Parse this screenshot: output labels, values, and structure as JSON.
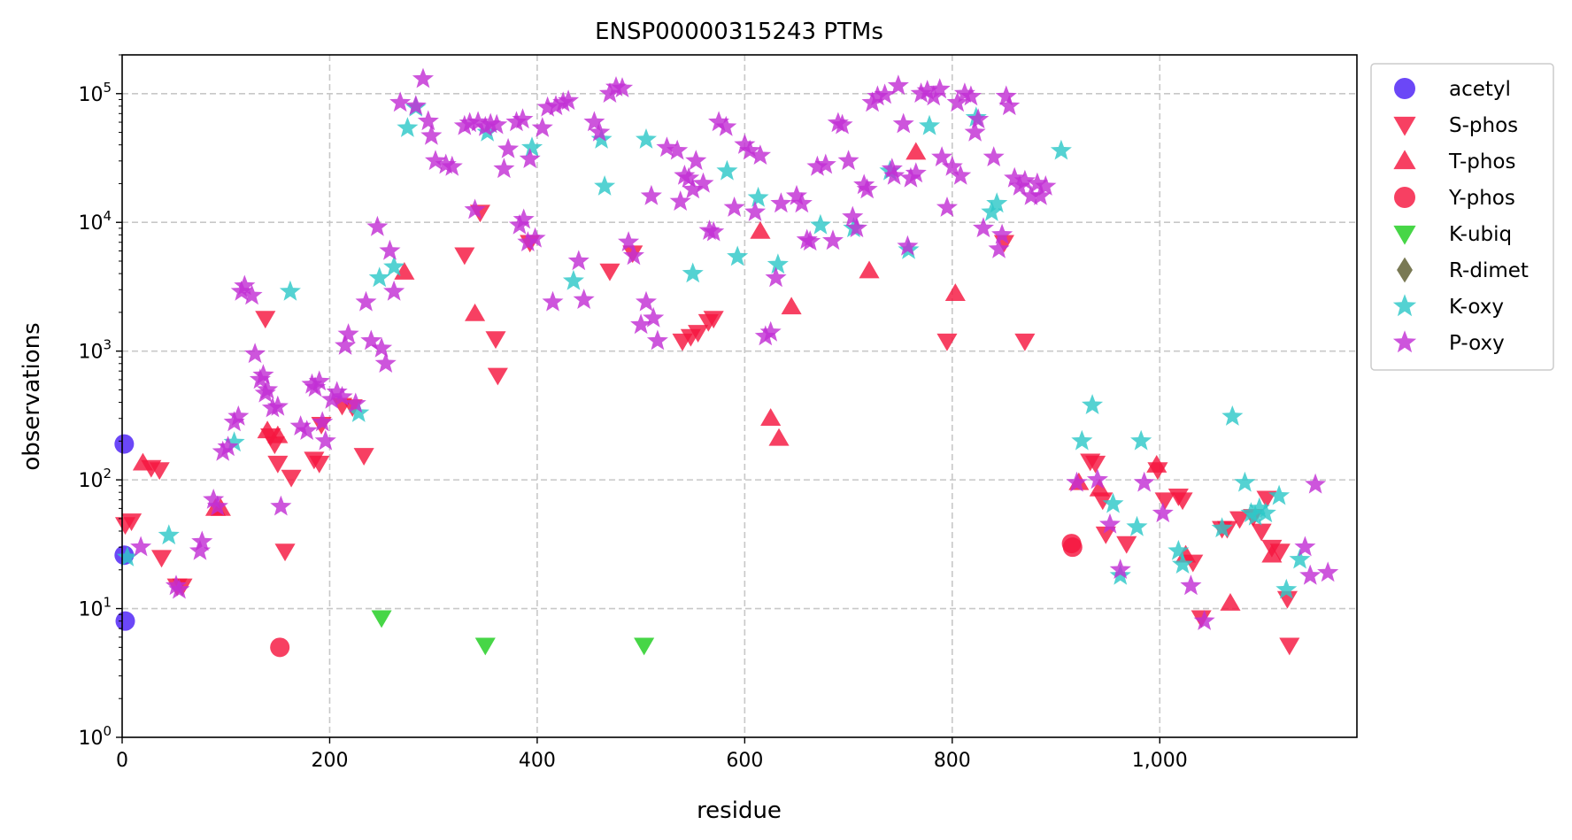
{
  "chart_data": {
    "type": "scatter",
    "title": "ENSP00000315243 PTMs",
    "xlabel": "residue",
    "ylabel": "observations",
    "xlim": [
      0,
      1190
    ],
    "ylim": [
      1,
      200000
    ],
    "y_scale": "log",
    "x_ticks": [
      0,
      200,
      400,
      600,
      800,
      1000
    ],
    "x_tick_labels": [
      "0",
      "200",
      "400",
      "600",
      "800",
      "1,000"
    ],
    "y_ticks": [
      1,
      10,
      100,
      1000,
      10000,
      100000
    ],
    "y_tick_labels": [
      {
        "base": "10",
        "exp": "0"
      },
      {
        "base": "10",
        "exp": "1"
      },
      {
        "base": "10",
        "exp": "2"
      },
      {
        "base": "10",
        "exp": "3"
      },
      {
        "base": "10",
        "exp": "4"
      },
      {
        "base": "10",
        "exp": "5"
      }
    ],
    "grid": true,
    "legend_position": "outside-right-top",
    "series": [
      {
        "name": "acetyl",
        "marker": "circle",
        "color": "#4b1ff5",
        "points": [
          [
            2,
            190
          ],
          [
            2,
            26
          ],
          [
            3,
            8
          ]
        ]
      },
      {
        "name": "S-phos",
        "marker": "triangle-down",
        "color": "#f5163f",
        "points": [
          [
            3,
            45
          ],
          [
            9,
            48
          ],
          [
            28,
            125
          ],
          [
            36,
            120
          ],
          [
            38,
            25
          ],
          [
            53,
            15
          ],
          [
            58,
            15
          ],
          [
            138,
            1800
          ],
          [
            143,
            220
          ],
          [
            147,
            190
          ],
          [
            150,
            135
          ],
          [
            157,
            28
          ],
          [
            163,
            105
          ],
          [
            185,
            145
          ],
          [
            190,
            135
          ],
          [
            192,
            270
          ],
          [
            212,
            380
          ],
          [
            222,
            370
          ],
          [
            233,
            155
          ],
          [
            330,
            5600
          ],
          [
            345,
            12000
          ],
          [
            360,
            1250
          ],
          [
            362,
            650
          ],
          [
            393,
            7000
          ],
          [
            470,
            4200
          ],
          [
            492,
            5800
          ],
          [
            540,
            1200
          ],
          [
            548,
            1300
          ],
          [
            555,
            1400
          ],
          [
            565,
            1700
          ],
          [
            570,
            1800
          ],
          [
            795,
            1200
          ],
          [
            850,
            7000
          ],
          [
            870,
            1200
          ],
          [
            933,
            140
          ],
          [
            938,
            135
          ],
          [
            945,
            70
          ],
          [
            948,
            38
          ],
          [
            968,
            32
          ],
          [
            998,
            120
          ],
          [
            1005,
            70
          ],
          [
            1018,
            75
          ],
          [
            1022,
            70
          ],
          [
            1032,
            23
          ],
          [
            1040,
            8.5
          ],
          [
            1060,
            42
          ],
          [
            1065,
            42
          ],
          [
            1077,
            50
          ],
          [
            1090,
            52
          ],
          [
            1098,
            40
          ],
          [
            1103,
            72
          ],
          [
            1108,
            30
          ],
          [
            1116,
            28
          ],
          [
            1123,
            12
          ],
          [
            1125,
            5.2
          ]
        ]
      },
      {
        "name": "T-phos",
        "marker": "triangle-up",
        "color": "#f5163f",
        "points": [
          [
            20,
            135
          ],
          [
            90,
            60
          ],
          [
            95,
            60
          ],
          [
            140,
            240
          ],
          [
            150,
            220
          ],
          [
            272,
            4100
          ],
          [
            340,
            1950
          ],
          [
            615,
            8500
          ],
          [
            625,
            300
          ],
          [
            633,
            210
          ],
          [
            645,
            2200
          ],
          [
            720,
            4200
          ],
          [
            765,
            35000
          ],
          [
            803,
            2800
          ],
          [
            922,
            95
          ],
          [
            942,
            85
          ],
          [
            997,
            130
          ],
          [
            1025,
            26
          ],
          [
            1068,
            11
          ],
          [
            1108,
            26
          ]
        ]
      },
      {
        "name": "Y-phos",
        "marker": "circle",
        "color": "#f5163f",
        "points": [
          [
            152,
            5
          ],
          [
            915,
            32
          ],
          [
            916,
            30
          ]
        ]
      },
      {
        "name": "K-ubiq",
        "marker": "triangle-down",
        "color": "#1ecd1e",
        "points": [
          [
            250,
            8.5
          ],
          [
            350,
            5.2
          ],
          [
            503,
            5.2
          ]
        ]
      },
      {
        "name": "R-dimet",
        "marker": "diamond",
        "color": "#5c5c2e",
        "points": []
      },
      {
        "name": "K-oxy",
        "marker": "star",
        "color": "#2ec8c8",
        "points": [
          [
            5,
            25
          ],
          [
            45,
            37
          ],
          [
            108,
            195
          ],
          [
            162,
            2900
          ],
          [
            228,
            330
          ],
          [
            248,
            3700
          ],
          [
            262,
            4500
          ],
          [
            275,
            54000
          ],
          [
            283,
            78000
          ],
          [
            352,
            50000
          ],
          [
            395,
            38000
          ],
          [
            435,
            3500
          ],
          [
            462,
            44000
          ],
          [
            465,
            19000
          ],
          [
            505,
            44000
          ],
          [
            550,
            4000
          ],
          [
            583,
            25000
          ],
          [
            593,
            5400
          ],
          [
            613,
            15500
          ],
          [
            632,
            4700
          ],
          [
            673,
            9500
          ],
          [
            705,
            9000
          ],
          [
            740,
            25000
          ],
          [
            758,
            6100
          ],
          [
            778,
            56000
          ],
          [
            823,
            65000
          ],
          [
            838,
            12000
          ],
          [
            843,
            14000
          ],
          [
            905,
            36000
          ],
          [
            925,
            200
          ],
          [
            935,
            380
          ],
          [
            955,
            65
          ],
          [
            962,
            18
          ],
          [
            978,
            43
          ],
          [
            982,
            200
          ],
          [
            1018,
            28
          ],
          [
            1022,
            22
          ],
          [
            1060,
            42
          ],
          [
            1070,
            310
          ],
          [
            1082,
            95
          ],
          [
            1088,
            55
          ],
          [
            1092,
            52
          ],
          [
            1096,
            60
          ],
          [
            1102,
            55
          ],
          [
            1115,
            75
          ],
          [
            1122,
            14
          ],
          [
            1135,
            24
          ]
        ]
      },
      {
        "name": "P-oxy",
        "marker": "star",
        "color": "#c22fd4",
        "points": [
          [
            18,
            30
          ],
          [
            52,
            15
          ],
          [
            55,
            14
          ],
          [
            77,
            33
          ],
          [
            75,
            28
          ],
          [
            88,
            70
          ],
          [
            92,
            62
          ],
          [
            97,
            165
          ],
          [
            102,
            180
          ],
          [
            108,
            280
          ],
          [
            112,
            310
          ],
          [
            115,
            2900
          ],
          [
            118,
            3200
          ],
          [
            125,
            2700
          ],
          [
            128,
            950
          ],
          [
            133,
            600
          ],
          [
            136,
            650
          ],
          [
            138,
            470
          ],
          [
            140,
            500
          ],
          [
            145,
            360
          ],
          [
            150,
            370
          ],
          [
            153,
            62
          ],
          [
            172,
            260
          ],
          [
            178,
            240
          ],
          [
            183,
            550
          ],
          [
            186,
            520
          ],
          [
            190,
            580
          ],
          [
            193,
            280
          ],
          [
            196,
            200
          ],
          [
            202,
            420
          ],
          [
            207,
            480
          ],
          [
            212,
            440
          ],
          [
            215,
            1100
          ],
          [
            218,
            1350
          ],
          [
            225,
            390
          ],
          [
            235,
            2400
          ],
          [
            240,
            1200
          ],
          [
            246,
            9200
          ],
          [
            250,
            1050
          ],
          [
            254,
            800
          ],
          [
            258,
            6000
          ],
          [
            262,
            2900
          ],
          [
            268,
            85000
          ],
          [
            283,
            80000
          ],
          [
            290,
            130000
          ],
          [
            295,
            61000
          ],
          [
            298,
            47000
          ],
          [
            302,
            30000
          ],
          [
            312,
            28000
          ],
          [
            318,
            27000
          ],
          [
            330,
            56000
          ],
          [
            335,
            59000
          ],
          [
            340,
            12500
          ],
          [
            343,
            60000
          ],
          [
            350,
            55000
          ],
          [
            355,
            58000
          ],
          [
            361,
            57000
          ],
          [
            368,
            26000
          ],
          [
            372,
            37000
          ],
          [
            380,
            60000
          ],
          [
            386,
            63000
          ],
          [
            383,
            9500
          ],
          [
            387,
            10500
          ],
          [
            391,
            7000
          ],
          [
            398,
            7500
          ],
          [
            393,
            31000
          ],
          [
            405,
            54000
          ],
          [
            410,
            78000
          ],
          [
            418,
            80000
          ],
          [
            425,
            85000
          ],
          [
            430,
            88000
          ],
          [
            415,
            2400
          ],
          [
            440,
            5000
          ],
          [
            445,
            2500
          ],
          [
            470,
            100000
          ],
          [
            476,
            112000
          ],
          [
            482,
            110000
          ],
          [
            488,
            7000
          ],
          [
            493,
            5500
          ],
          [
            455,
            60000
          ],
          [
            460,
            50000
          ],
          [
            500,
            1600
          ],
          [
            505,
            2400
          ],
          [
            512,
            1800
          ],
          [
            510,
            16000
          ],
          [
            516,
            1200
          ],
          [
            525,
            38000
          ],
          [
            535,
            36000
          ],
          [
            538,
            14500
          ],
          [
            542,
            23000
          ],
          [
            546,
            22000
          ],
          [
            550,
            18000
          ],
          [
            553,
            30000
          ],
          [
            560,
            20000
          ],
          [
            566,
            8600
          ],
          [
            570,
            8400
          ],
          [
            575,
            60000
          ],
          [
            582,
            55000
          ],
          [
            590,
            13000
          ],
          [
            600,
            40000
          ],
          [
            605,
            36000
          ],
          [
            610,
            12000
          ],
          [
            615,
            33000
          ],
          [
            620,
            1300
          ],
          [
            625,
            1400
          ],
          [
            630,
            3700
          ],
          [
            635,
            14000
          ],
          [
            650,
            16000
          ],
          [
            655,
            14000
          ],
          [
            660,
            7300
          ],
          [
            663,
            7100
          ],
          [
            670,
            27000
          ],
          [
            678,
            28000
          ],
          [
            685,
            7200
          ],
          [
            690,
            59000
          ],
          [
            694,
            57000
          ],
          [
            700,
            30000
          ],
          [
            704,
            11000
          ],
          [
            708,
            9000
          ],
          [
            715,
            19500
          ],
          [
            718,
            18000
          ],
          [
            723,
            85000
          ],
          [
            728,
            95000
          ],
          [
            735,
            98000
          ],
          [
            742,
            26000
          ],
          [
            744,
            23000
          ],
          [
            748,
            115000
          ],
          [
            753,
            58000
          ],
          [
            757,
            6500
          ],
          [
            760,
            22000
          ],
          [
            765,
            24000
          ],
          [
            770,
            100000
          ],
          [
            776,
            105000
          ],
          [
            782,
            95000
          ],
          [
            788,
            108000
          ],
          [
            790,
            32000
          ],
          [
            795,
            13000
          ],
          [
            800,
            27000
          ],
          [
            805,
            85000
          ],
          [
            808,
            23000
          ],
          [
            812,
            100000
          ],
          [
            818,
            95000
          ],
          [
            822,
            50000
          ],
          [
            825,
            63000
          ],
          [
            830,
            9000
          ],
          [
            840,
            32000
          ],
          [
            845,
            6200
          ],
          [
            848,
            8000
          ],
          [
            852,
            95000
          ],
          [
            855,
            80000
          ],
          [
            860,
            22000
          ],
          [
            865,
            19000
          ],
          [
            870,
            21000
          ],
          [
            876,
            16000
          ],
          [
            882,
            20000
          ],
          [
            885,
            16000
          ],
          [
            890,
            19000
          ],
          [
            920,
            95
          ],
          [
            940,
            100
          ],
          [
            952,
            45
          ],
          [
            962,
            20
          ],
          [
            985,
            95
          ],
          [
            1003,
            55
          ],
          [
            1030,
            15
          ],
          [
            1043,
            8
          ],
          [
            1140,
            30
          ],
          [
            1145,
            18
          ],
          [
            1150,
            92
          ],
          [
            1162,
            19
          ]
        ]
      }
    ]
  }
}
